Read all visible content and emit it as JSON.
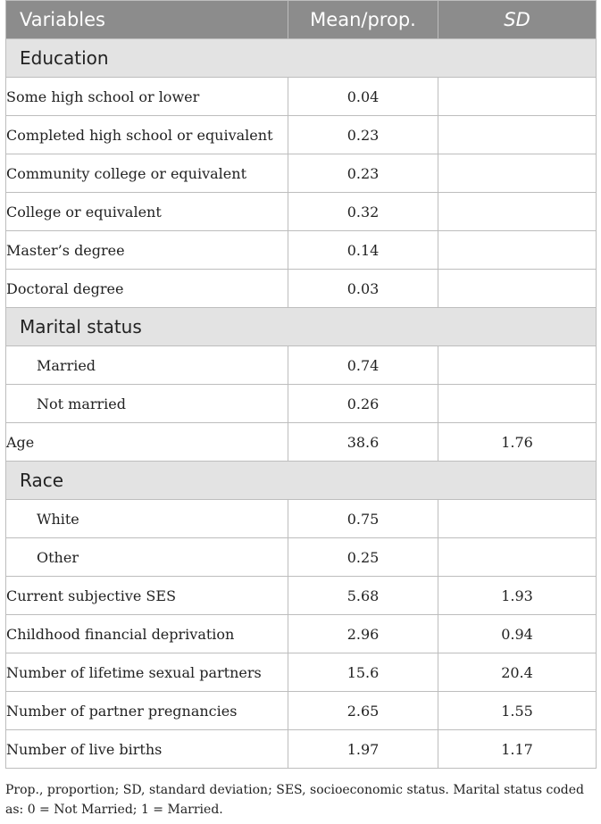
{
  "header": {
    "variables": "Variables",
    "mean": "Mean/prop.",
    "sd": "SD"
  },
  "education": {
    "title": "Education",
    "rows": [
      {
        "label": "Some high school or lower",
        "mean": "0.04",
        "sd": ""
      },
      {
        "label": "Completed high school or equivalent",
        "mean": "0.23",
        "sd": ""
      },
      {
        "label": "Community college or equivalent",
        "mean": "0.23",
        "sd": ""
      },
      {
        "label": "College or equivalent",
        "mean": "0.32",
        "sd": ""
      },
      {
        "label": "Master’s degree",
        "mean": "0.14",
        "sd": ""
      },
      {
        "label": "Doctoral degree",
        "mean": "0.03",
        "sd": ""
      }
    ]
  },
  "marital": {
    "title": "Marital status",
    "rows": [
      {
        "label": "Married",
        "mean": "0.74",
        "sd": ""
      },
      {
        "label": "Not married",
        "mean": "0.26",
        "sd": ""
      }
    ]
  },
  "age": {
    "label": "Age",
    "mean": "38.6",
    "sd": "1.76"
  },
  "race": {
    "title": "Race",
    "rows": [
      {
        "label": "White",
        "mean": "0.75",
        "sd": ""
      },
      {
        "label": "Other",
        "mean": "0.25",
        "sd": ""
      }
    ]
  },
  "other": [
    {
      "label": "Current subjective SES",
      "mean": "5.68",
      "sd": "1.93"
    },
    {
      "label": "Childhood financial deprivation",
      "mean": "2.96",
      "sd": "0.94"
    },
    {
      "label": "Number of lifetime sexual partners",
      "mean": "15.6",
      "sd": "20.4"
    },
    {
      "label": "Number of partner pregnancies",
      "mean": "2.65",
      "sd": "1.55"
    },
    {
      "label": "Number of live births",
      "mean": "1.97",
      "sd": "1.17"
    }
  ],
  "footnote": "Prop., proportion; SD, standard deviation; SES, socioeconomic status. Marital status coded as: 0 = Not Married; 1 = Married."
}
